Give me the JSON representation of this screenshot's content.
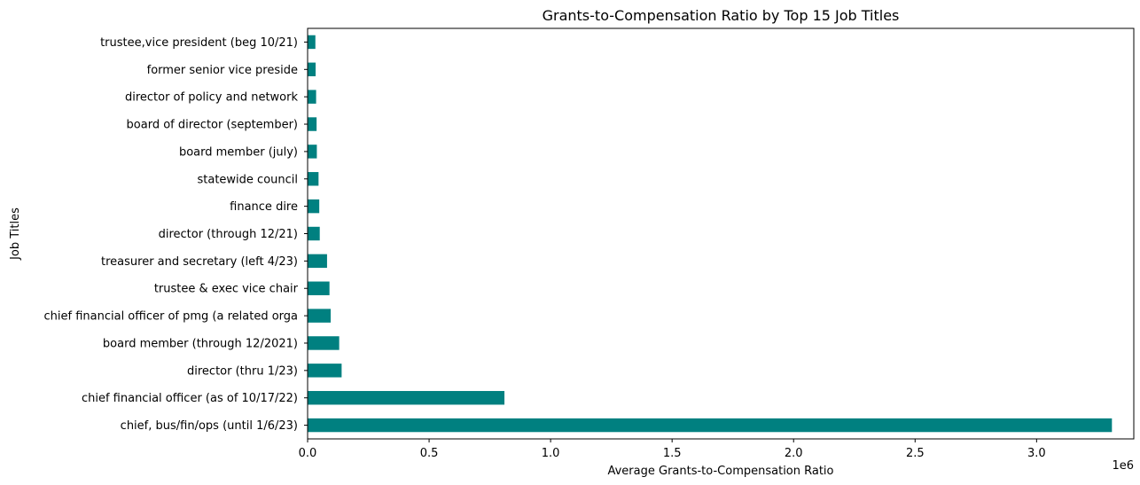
{
  "chart_data": {
    "type": "bar",
    "orientation": "horizontal",
    "title": "Grants-to-Compensation Ratio by Top 15 Job Titles",
    "xlabel": "Average Grants-to-Compensation Ratio",
    "ylabel": "Job Titles",
    "x_offset_text": "1e6",
    "xlim": [
      0,
      3400000
    ],
    "xticks": [
      0,
      500000,
      1000000,
      1500000,
      2000000,
      2500000,
      3000000
    ],
    "xtick_labels": [
      "0.0",
      "0.5",
      "1.0",
      "1.5",
      "2.0",
      "2.5",
      "3.0"
    ],
    "grid": false,
    "bar_color": "#008080",
    "categories": [
      "chief, bus/fin/ops (until 1/6/23)",
      "chief financial officer (as of 10/17/22)",
      "director (thru 1/23)",
      "board member (through 12/2021)",
      "chief financial officer of pmg (a related orga",
      "trustee & exec vice chair",
      "treasurer and secretary (left 4/23)",
      "director (through 12/21)",
      "finance dire",
      "statewide council",
      "board member (july)",
      "board of director (september)",
      "director of policy and network",
      "former senior vice preside",
      "trustee,vice president (beg 10/21)"
    ],
    "values": [
      3310000,
      810000,
      140000,
      130000,
      95000,
      90000,
      80000,
      50000,
      48000,
      45000,
      38000,
      37000,
      35000,
      33000,
      32000
    ]
  }
}
